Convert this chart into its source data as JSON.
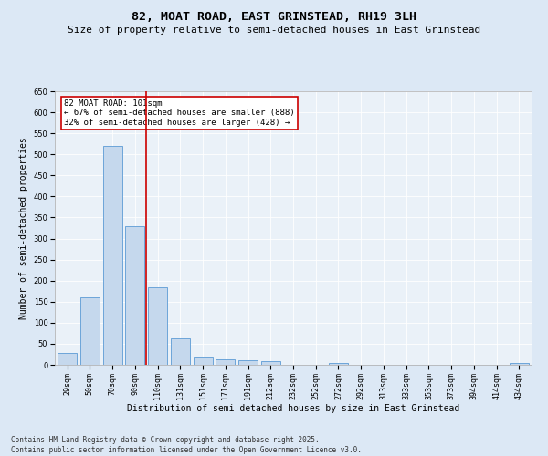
{
  "title": "82, MOAT ROAD, EAST GRINSTEAD, RH19 3LH",
  "subtitle": "Size of property relative to semi-detached houses in East Grinstead",
  "xlabel": "Distribution of semi-detached houses by size in East Grinstead",
  "ylabel": "Number of semi-detached properties",
  "categories": [
    "29sqm",
    "50sqm",
    "70sqm",
    "90sqm",
    "110sqm",
    "131sqm",
    "151sqm",
    "171sqm",
    "191sqm",
    "212sqm",
    "232sqm",
    "252sqm",
    "272sqm",
    "292sqm",
    "313sqm",
    "333sqm",
    "353sqm",
    "373sqm",
    "394sqm",
    "414sqm",
    "434sqm"
  ],
  "values": [
    28,
    160,
    520,
    330,
    185,
    63,
    20,
    12,
    10,
    8,
    0,
    0,
    4,
    0,
    0,
    0,
    0,
    0,
    0,
    0,
    5
  ],
  "bar_color": "#c5d8ed",
  "bar_edge_color": "#5b9bd5",
  "vline_x": 3.5,
  "vline_color": "#cc0000",
  "annotation_text": "82 MOAT ROAD: 101sqm\n← 67% of semi-detached houses are smaller (888)\n32% of semi-detached houses are larger (428) →",
  "annotation_box_color": "#ffffff",
  "annotation_box_edge": "#cc0000",
  "ylim": [
    0,
    650
  ],
  "yticks": [
    0,
    50,
    100,
    150,
    200,
    250,
    300,
    350,
    400,
    450,
    500,
    550,
    600,
    650
  ],
  "bg_color": "#dce8f5",
  "plot_bg_color": "#eaf1f8",
  "footer_text": "Contains HM Land Registry data © Crown copyright and database right 2025.\nContains public sector information licensed under the Open Government Licence v3.0.",
  "title_fontsize": 9.5,
  "subtitle_fontsize": 8,
  "xlabel_fontsize": 7,
  "ylabel_fontsize": 7,
  "tick_fontsize": 6,
  "annotation_fontsize": 6.5,
  "footer_fontsize": 5.5
}
